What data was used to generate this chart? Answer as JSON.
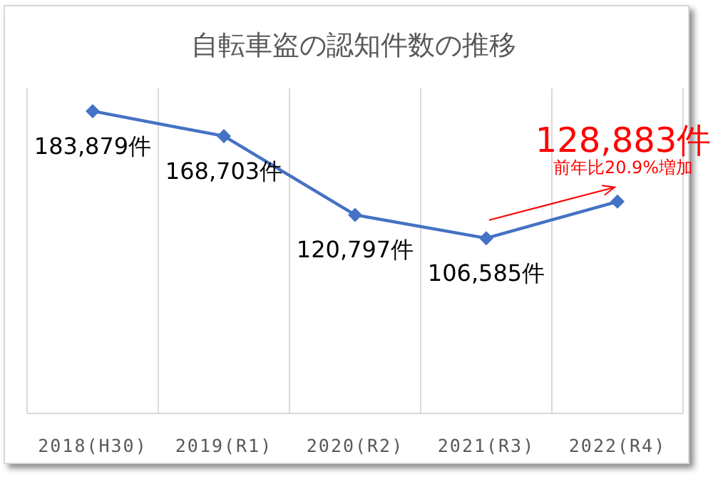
{
  "chart_data": {
    "type": "line",
    "title": "自転車盗の認知件数の推移",
    "categories": [
      "2018(H30)",
      "2019(R1)",
      "2020(R2)",
      "2021(R3)",
      "2022(R4)"
    ],
    "series": [
      {
        "color": "#4472c4",
        "values": [
          183879,
          168703,
          120797,
          106585,
          128883
        ],
        "value_labels": [
          "183,879件",
          "168,703件",
          "120,797件",
          "106,585件",
          "128,883件"
        ]
      }
    ],
    "annotations": [
      {
        "text": "前年比20.9%増加",
        "x": "2022(R4)",
        "y": 128883
      }
    ],
    "grid": "x",
    "marker": "diamond",
    "line_style": "solid"
  }
}
